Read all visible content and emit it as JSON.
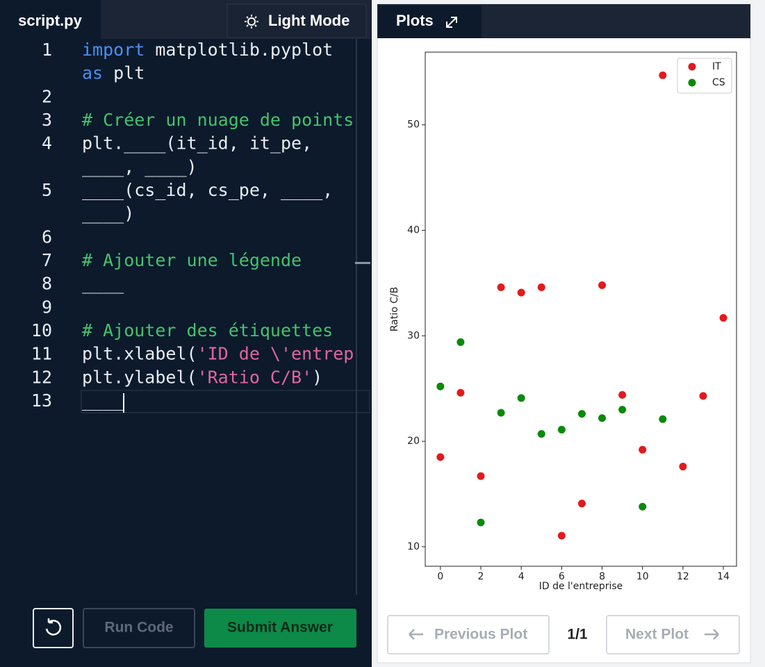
{
  "editor": {
    "tab": "script.py",
    "mode_button": "Light Mode",
    "lines": [
      {
        "number": 1,
        "rows": [
          [
            {
              "text": "import",
              "color": "#4d8ef0"
            },
            {
              "text": " matplotlib.pyplot",
              "color": "#e8edf2"
            }
          ],
          [
            {
              "text": "as",
              "color": "#4d8ef0"
            },
            {
              "text": " plt",
              "color": "#e8edf2"
            }
          ]
        ]
      },
      {
        "number": 2,
        "rows": [
          []
        ]
      },
      {
        "number": 3,
        "rows": [
          [
            {
              "text": "# Créer un nuage de points",
              "color": "#43c36b"
            }
          ]
        ]
      },
      {
        "number": 4,
        "rows": [
          [
            {
              "text": "plt.____(it_id, it_pe,",
              "color": "#e8edf2"
            }
          ],
          [
            {
              "text": "____, ____)",
              "color": "#e8edf2"
            }
          ]
        ]
      },
      {
        "number": 5,
        "rows": [
          [
            {
              "text": "____(cs_id, cs_pe, ____,",
              "color": "#e8edf2"
            }
          ],
          [
            {
              "text": "____)",
              "color": "#e8edf2"
            }
          ]
        ]
      },
      {
        "number": 6,
        "rows": [
          []
        ]
      },
      {
        "number": 7,
        "rows": [
          [
            {
              "text": "# Ajouter une légende",
              "color": "#43c36b"
            }
          ]
        ]
      },
      {
        "number": 8,
        "rows": [
          [
            {
              "text": "____",
              "color": "#e8edf2"
            }
          ]
        ]
      },
      {
        "number": 9,
        "rows": [
          []
        ]
      },
      {
        "number": 10,
        "rows": [
          [
            {
              "text": "# Ajouter des étiquettes",
              "color": "#43c36b"
            }
          ]
        ]
      },
      {
        "number": 11,
        "rows": [
          [
            {
              "text": "plt.xlabel(",
              "color": "#e8edf2"
            },
            {
              "text": "'ID de \\'entrepr",
              "color": "#e0669e"
            }
          ]
        ]
      },
      {
        "number": 12,
        "rows": [
          [
            {
              "text": "plt.ylabel(",
              "color": "#e8edf2"
            },
            {
              "text": "'Ratio C/B'",
              "color": "#e0669e"
            },
            {
              "text": ")",
              "color": "#e8edf2"
            }
          ]
        ]
      },
      {
        "number": 13,
        "rows": [
          [
            {
              "text": "____",
              "color": "#e8edf2"
            }
          ]
        ]
      }
    ],
    "run_button": "Run Code",
    "submit_button": "Submit Answer"
  },
  "plots_panel": {
    "tab": "Plots",
    "previous_button": "Previous Plot",
    "page": "1/1",
    "next_button": "Next Plot"
  },
  "chart_data": {
    "type": "scatter",
    "xlabel": "ID de l'entreprise",
    "ylabel": "Ratio C/B",
    "xlim": [
      -0.75,
      14.65
    ],
    "ylim": [
      8.15,
      56.9
    ],
    "xticks": [
      0,
      2,
      4,
      6,
      8,
      10,
      12,
      14
    ],
    "yticks": [
      10,
      20,
      30,
      40,
      50
    ],
    "legend": "upper right",
    "series": [
      {
        "name": "IT",
        "color": "#e31a1c",
        "x": [
          0,
          1,
          2,
          3,
          4,
          5,
          6,
          7,
          8,
          9,
          10,
          11,
          12,
          13,
          14
        ],
        "values": [
          18.5,
          24.6,
          16.7,
          34.6,
          34.1,
          34.6,
          11.05,
          14.1,
          34.8,
          24.4,
          19.2,
          54.7,
          17.6,
          24.3,
          31.7
        ]
      },
      {
        "name": "CS",
        "color": "#0a8a0a",
        "x": [
          0,
          1,
          2,
          3,
          4,
          5,
          6,
          7,
          8,
          9,
          10,
          11
        ],
        "values": [
          25.2,
          29.4,
          12.3,
          22.7,
          24.1,
          20.7,
          21.1,
          22.6,
          22.2,
          23.0,
          13.8,
          22.1
        ]
      }
    ]
  }
}
